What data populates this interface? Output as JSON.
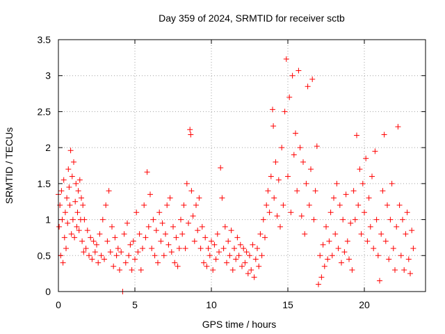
{
  "chart_data": {
    "type": "scatter",
    "title": "Day 359 of 2024, SRMTID for receiver sctb",
    "xlabel": "GPS time / hours",
    "ylabel": "SRMTID / TECUs",
    "xlim": [
      0,
      24
    ],
    "ylim": [
      0,
      3.5
    ],
    "xticks": [
      0,
      5,
      10,
      15,
      20
    ],
    "yticks": [
      0,
      0.5,
      1,
      1.5,
      2,
      2.5,
      3,
      3.5
    ],
    "xtick_labels": [
      "0",
      "5",
      "10",
      "15",
      "20"
    ],
    "ytick_labels": [
      "0",
      "0.5",
      "1",
      "1.5",
      "2",
      "2.5",
      "3",
      "3.5"
    ],
    "grid": true,
    "marker": "plus",
    "color": "#ff0000",
    "series": [
      {
        "name": "SRMTID",
        "points": [
          [
            0.0,
            1.35
          ],
          [
            0.05,
            0.9
          ],
          [
            0.1,
            1.2
          ],
          [
            0.15,
            0.5
          ],
          [
            0.2,
            1.4
          ],
          [
            0.25,
            1.0
          ],
          [
            0.3,
            0.4
          ],
          [
            0.35,
            1.55
          ],
          [
            0.4,
            0.75
          ],
          [
            0.45,
            1.1
          ],
          [
            0.5,
            0.6
          ],
          [
            0.55,
            1.3
          ],
          [
            0.6,
            0.95
          ],
          [
            0.65,
            1.7
          ],
          [
            0.7,
            1.45
          ],
          [
            0.75,
            1.2
          ],
          [
            0.8,
            1.96
          ],
          [
            0.85,
            0.8
          ],
          [
            0.9,
            1.6
          ],
          [
            0.95,
            1.0
          ],
          [
            1.0,
            1.8
          ],
          [
            1.05,
            0.75
          ],
          [
            1.1,
            1.25
          ],
          [
            1.15,
            1.5
          ],
          [
            1.2,
            0.9
          ],
          [
            1.25,
            1.1
          ],
          [
            1.3,
            1.4
          ],
          [
            1.35,
            0.85
          ],
          [
            1.4,
            1.55
          ],
          [
            1.45,
            1.0
          ],
          [
            1.5,
            1.3
          ],
          [
            1.55,
            0.7
          ],
          [
            1.6,
            1.2
          ],
          [
            1.65,
            0.55
          ],
          [
            1.7,
            1.0
          ],
          [
            1.8,
            0.6
          ],
          [
            1.9,
            0.85
          ],
          [
            2.0,
            0.5
          ],
          [
            2.1,
            0.75
          ],
          [
            2.2,
            0.45
          ],
          [
            2.3,
            0.7
          ],
          [
            2.4,
            0.55
          ],
          [
            2.5,
            0.65
          ],
          [
            2.6,
            0.4
          ],
          [
            2.7,
            0.8
          ],
          [
            2.8,
            0.5
          ],
          [
            2.9,
            1.0
          ],
          [
            3.0,
            0.45
          ],
          [
            3.1,
            1.2
          ],
          [
            3.2,
            0.7
          ],
          [
            3.3,
            1.4
          ],
          [
            3.4,
            0.55
          ],
          [
            3.5,
            0.9
          ],
          [
            3.6,
            0.35
          ],
          [
            3.7,
            0.75
          ],
          [
            3.8,
            0.5
          ],
          [
            3.9,
            0.6
          ],
          [
            4.0,
            0.3
          ],
          [
            4.1,
            0.55
          ],
          [
            4.2,
            0.0
          ],
          [
            4.3,
            0.8
          ],
          [
            4.4,
            0.4
          ],
          [
            4.5,
            0.95
          ],
          [
            4.6,
            0.5
          ],
          [
            4.7,
            0.65
          ],
          [
            4.8,
            0.3
          ],
          [
            4.9,
            0.7
          ],
          [
            5.0,
            0.45
          ],
          [
            5.1,
            1.1
          ],
          [
            5.2,
            0.55
          ],
          [
            5.3,
            0.8
          ],
          [
            5.4,
            0.3
          ],
          [
            5.5,
            0.6
          ],
          [
            5.6,
            1.2
          ],
          [
            5.7,
            0.75
          ],
          [
            5.8,
            1.66
          ],
          [
            5.9,
            0.9
          ],
          [
            6.0,
            1.35
          ],
          [
            6.1,
            0.6
          ],
          [
            6.2,
            1.0
          ],
          [
            6.3,
            0.5
          ],
          [
            6.4,
            0.85
          ],
          [
            6.5,
            0.4
          ],
          [
            6.6,
            1.1
          ],
          [
            6.7,
            0.7
          ],
          [
            6.8,
            0.95
          ],
          [
            6.9,
            0.5
          ],
          [
            7.0,
            0.8
          ],
          [
            7.1,
            1.2
          ],
          [
            7.2,
            0.65
          ],
          [
            7.3,
            1.3
          ],
          [
            7.4,
            0.55
          ],
          [
            7.5,
            0.9
          ],
          [
            7.6,
            0.4
          ],
          [
            7.7,
            0.75
          ],
          [
            7.8,
            0.35
          ],
          [
            7.9,
            0.6
          ],
          [
            8.0,
            1.0
          ],
          [
            8.1,
            0.8
          ],
          [
            8.2,
            1.2
          ],
          [
            8.3,
            0.6
          ],
          [
            8.4,
            1.5
          ],
          [
            8.5,
            0.95
          ],
          [
            8.6,
            2.25
          ],
          [
            8.65,
            2.18
          ],
          [
            8.7,
            1.4
          ],
          [
            8.8,
            1.05
          ],
          [
            8.9,
            0.7
          ],
          [
            9.0,
            1.2
          ],
          [
            9.1,
            0.85
          ],
          [
            9.2,
            1.3
          ],
          [
            9.3,
            0.6
          ],
          [
            9.4,
            0.9
          ],
          [
            9.5,
            0.4
          ],
          [
            9.6,
            0.75
          ],
          [
            9.7,
            0.35
          ],
          [
            9.8,
            0.6
          ],
          [
            9.9,
            0.5
          ],
          [
            10.0,
            0.7
          ],
          [
            10.1,
            0.3
          ],
          [
            10.2,
            0.65
          ],
          [
            10.3,
            0.45
          ],
          [
            10.4,
            0.8
          ],
          [
            10.5,
            0.55
          ],
          [
            10.6,
            1.72
          ],
          [
            10.7,
            1.3
          ],
          [
            10.8,
            0.6
          ],
          [
            10.9,
            0.9
          ],
          [
            11.0,
            0.4
          ],
          [
            11.1,
            0.7
          ],
          [
            11.2,
            0.5
          ],
          [
            11.3,
            0.85
          ],
          [
            11.4,
            0.3
          ],
          [
            11.5,
            0.6
          ],
          [
            11.6,
            0.45
          ],
          [
            11.7,
            0.75
          ],
          [
            11.8,
            0.5
          ],
          [
            11.9,
            0.65
          ],
          [
            12.0,
            0.35
          ],
          [
            12.1,
            0.6
          ],
          [
            12.2,
            0.4
          ],
          [
            12.3,
            0.55
          ],
          [
            12.4,
            0.25
          ],
          [
            12.5,
            0.5
          ],
          [
            12.6,
            0.3
          ],
          [
            12.7,
            0.65
          ],
          [
            12.8,
            0.2
          ],
          [
            12.9,
            0.45
          ],
          [
            13.0,
            0.6
          ],
          [
            13.1,
            0.35
          ],
          [
            13.2,
            0.8
          ],
          [
            13.3,
            0.5
          ],
          [
            13.4,
            1.0
          ],
          [
            13.5,
            0.75
          ],
          [
            13.6,
            1.2
          ],
          [
            13.7,
            1.4
          ],
          [
            13.8,
            1.1
          ],
          [
            13.9,
            1.6
          ],
          [
            14.0,
            2.53
          ],
          [
            14.05,
            2.3
          ],
          [
            14.1,
            1.3
          ],
          [
            14.2,
            1.8
          ],
          [
            14.3,
            1.05
          ],
          [
            14.4,
            1.55
          ],
          [
            14.5,
            0.9
          ],
          [
            14.6,
            2.0
          ],
          [
            14.7,
            1.2
          ],
          [
            14.8,
            2.5
          ],
          [
            14.9,
            3.23
          ],
          [
            15.0,
            1.6
          ],
          [
            15.1,
            2.7
          ],
          [
            15.2,
            1.1
          ],
          [
            15.3,
            3.0
          ],
          [
            15.4,
            1.9
          ],
          [
            15.5,
            2.2
          ],
          [
            15.6,
            1.4
          ],
          [
            15.7,
            3.07
          ],
          [
            15.8,
            2.0
          ],
          [
            15.9,
            1.05
          ],
          [
            16.0,
            1.8
          ],
          [
            16.1,
            0.8
          ],
          [
            16.2,
            1.5
          ],
          [
            16.3,
            2.85
          ],
          [
            16.4,
            1.2
          ],
          [
            16.5,
            1.7
          ],
          [
            16.6,
            2.95
          ],
          [
            16.7,
            1.0
          ],
          [
            16.8,
            1.4
          ],
          [
            16.9,
            2.02
          ],
          [
            17.0,
            0.1
          ],
          [
            17.1,
            0.5
          ],
          [
            17.2,
            0.2
          ],
          [
            17.3,
            0.65
          ],
          [
            17.4,
            0.35
          ],
          [
            17.5,
            0.9
          ],
          [
            17.6,
            0.45
          ],
          [
            17.7,
            0.7
          ],
          [
            17.8,
            1.1
          ],
          [
            17.9,
            0.5
          ],
          [
            18.0,
            1.3
          ],
          [
            18.1,
            0.8
          ],
          [
            18.2,
            1.5
          ],
          [
            18.3,
            0.6
          ],
          [
            18.4,
            1.2
          ],
          [
            18.5,
            0.4
          ],
          [
            18.6,
            1.0
          ],
          [
            18.7,
            0.55
          ],
          [
            18.8,
            1.35
          ],
          [
            18.9,
            0.7
          ],
          [
            19.0,
            0.45
          ],
          [
            19.1,
            0.95
          ],
          [
            19.2,
            0.3
          ],
          [
            19.3,
            1.4
          ],
          [
            19.4,
            1.0
          ],
          [
            19.5,
            2.17
          ],
          [
            19.6,
            1.2
          ],
          [
            19.7,
            1.7
          ],
          [
            19.8,
            0.8
          ],
          [
            19.9,
            1.5
          ],
          [
            20.0,
            1.1
          ],
          [
            20.1,
            1.85
          ],
          [
            20.2,
            0.7
          ],
          [
            20.3,
            1.3
          ],
          [
            20.4,
            0.9
          ],
          [
            20.5,
            1.6
          ],
          [
            20.6,
            0.6
          ],
          [
            20.7,
            1.95
          ],
          [
            20.8,
            1.0
          ],
          [
            20.9,
            0.5
          ],
          [
            21.0,
            0.15
          ],
          [
            21.1,
            0.8
          ],
          [
            21.2,
            1.4
          ],
          [
            21.3,
            2.18
          ],
          [
            21.4,
            0.7
          ],
          [
            21.5,
            1.2
          ],
          [
            21.6,
            0.45
          ],
          [
            21.7,
            1.0
          ],
          [
            21.8,
            1.5
          ],
          [
            21.9,
            0.6
          ],
          [
            22.0,
            0.3
          ],
          [
            22.1,
            0.9
          ],
          [
            22.2,
            2.29
          ],
          [
            22.3,
            1.2
          ],
          [
            22.4,
            0.5
          ],
          [
            22.5,
            1.0
          ],
          [
            22.6,
            0.3
          ],
          [
            22.7,
            0.8
          ],
          [
            22.8,
            1.1
          ],
          [
            22.9,
            0.45
          ],
          [
            23.0,
            0.25
          ],
          [
            23.1,
            0.85
          ],
          [
            23.2,
            0.6
          ]
        ]
      }
    ]
  }
}
